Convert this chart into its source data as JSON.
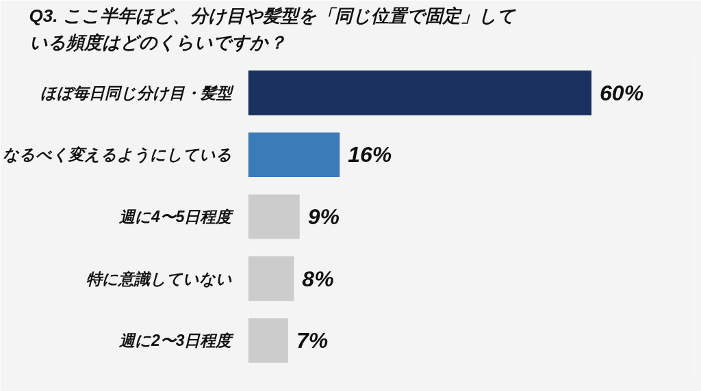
{
  "chart_data": {
    "type": "bar",
    "orientation": "horizontal",
    "title": "Q3. ここ半年ほど、分け目や髪型を「同じ位置で固定」している頻度はどのくらいですか？",
    "categories": [
      "ほぼ毎日同じ分け目・髪型",
      "なるべく変えるようにしている",
      "週に4〜5日程度",
      "特に意識していない",
      "週に2〜3日程度"
    ],
    "values": [
      60,
      16,
      9,
      8,
      7
    ],
    "colors": [
      "#1b3160",
      "#3b7bb8",
      "#cccccc",
      "#cccccc",
      "#cccccc"
    ],
    "value_labels": [
      "60%",
      "16%",
      "9%",
      "8%",
      "7%"
    ],
    "grid": false,
    "legend": false
  }
}
